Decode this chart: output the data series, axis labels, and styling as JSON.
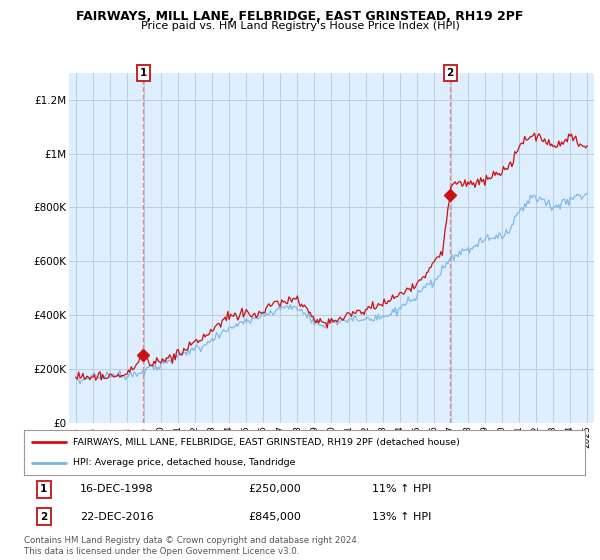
{
  "title": "FAIRWAYS, MILL LANE, FELBRIDGE, EAST GRINSTEAD, RH19 2PF",
  "subtitle": "Price paid vs. HM Land Registry's House Price Index (HPI)",
  "legend_line1": "FAIRWAYS, MILL LANE, FELBRIDGE, EAST GRINSTEAD, RH19 2PF (detached house)",
  "legend_line2": "HPI: Average price, detached house, Tandridge",
  "sale1_label": "1",
  "sale1_date": "16-DEC-1998",
  "sale1_price": "£250,000",
  "sale1_hpi": "11% ↑ HPI",
  "sale1_year": 1998.96,
  "sale1_value": 250000,
  "sale2_label": "2",
  "sale2_date": "22-DEC-2016",
  "sale2_price": "£845,000",
  "sale2_hpi": "13% ↑ HPI",
  "sale2_year": 2016.96,
  "sale2_value": 845000,
  "ylim": [
    0,
    1300000
  ],
  "yticks": [
    0,
    200000,
    400000,
    600000,
    800000,
    1000000,
    1200000
  ],
  "ytick_labels": [
    "£0",
    "£200K",
    "£400K",
    "£600K",
    "£800K",
    "£1M",
    "£1.2M"
  ],
  "hpi_color": "#7ab4e0",
  "price_color": "#cc1111",
  "marker_color": "#cc1111",
  "dashed_color": "#e08080",
  "chart_bg": "#ddeeff",
  "background_color": "#ffffff",
  "grid_color": "#bbccdd",
  "footer": "Contains HM Land Registry data © Crown copyright and database right 2024.\nThis data is licensed under the Open Government Licence v3.0."
}
